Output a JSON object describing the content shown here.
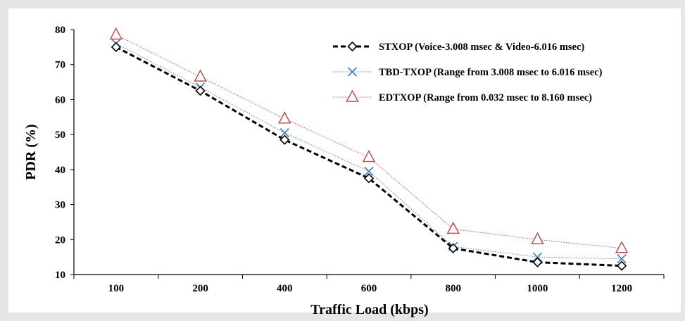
{
  "chart_data": {
    "type": "line",
    "title": "",
    "xlabel": "Traffic Load (kbps)",
    "ylabel": "PDR (%)",
    "categories": [
      "100",
      "200",
      "400",
      "600",
      "800",
      "1000",
      "1200"
    ],
    "ylim": [
      10,
      80
    ],
    "yticks": [
      10,
      20,
      30,
      40,
      50,
      60,
      70,
      80
    ],
    "grid": false,
    "legend_position": "top-right",
    "series": [
      {
        "name": "STXOP (Voice-3.008 msec & Video-6.016 msec)",
        "values": [
          75,
          62.5,
          48.5,
          37.5,
          17.5,
          13.5,
          12.5
        ],
        "color": "#000000",
        "marker": "diamond",
        "line": "dashed-bold"
      },
      {
        "name": "TBD-TXOP (Range from 3.008 msec to 6.016 msec)",
        "values": [
          76,
          63.5,
          50.5,
          39.5,
          18,
          15,
          14.5
        ],
        "color": "#4f81bd",
        "marker": "x",
        "line": "dotted"
      },
      {
        "name": "EDTXOP (Range from 0.032 msec to 8.160 msec)",
        "values": [
          78.5,
          66.5,
          54.5,
          43.5,
          23,
          20,
          17.5
        ],
        "color": "#c0504d",
        "marker": "triangle",
        "line": "dotted"
      }
    ]
  }
}
